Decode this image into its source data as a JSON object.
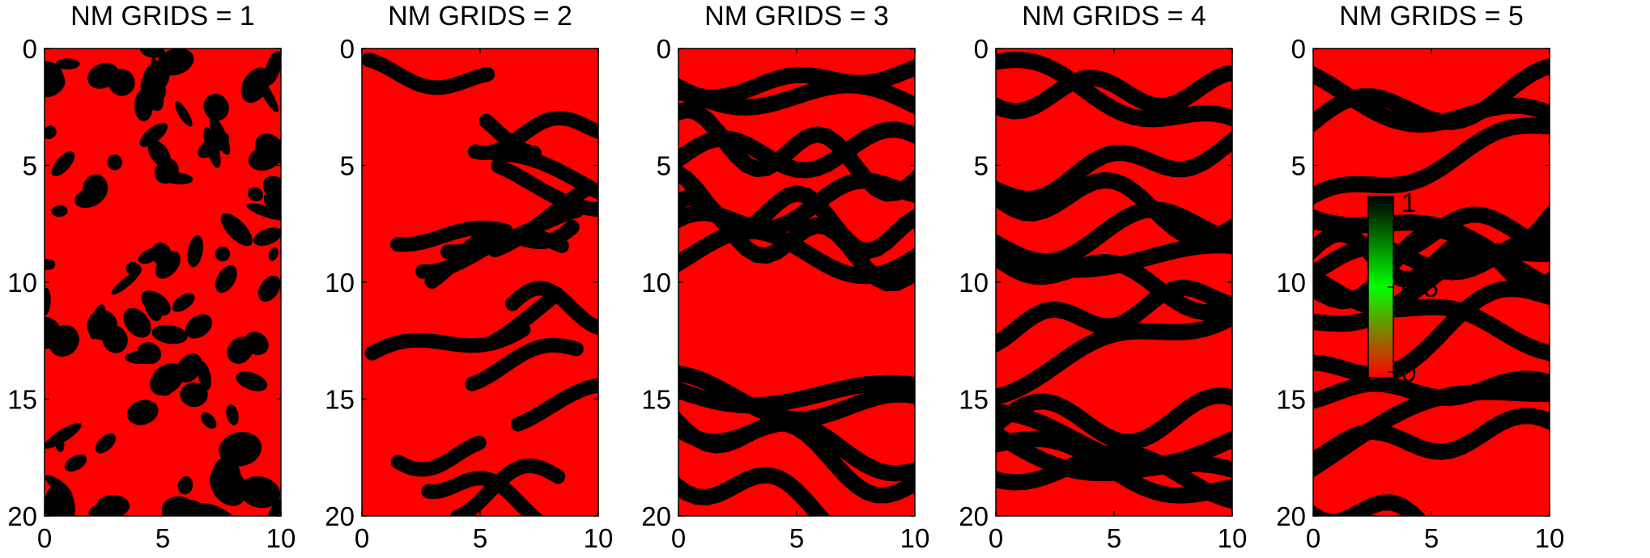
{
  "chart_data": {
    "type": "heatmap",
    "panels": [
      {
        "title": "NM GRIDS = 1",
        "pattern": "blobs"
      },
      {
        "title": "NM GRIDS = 2",
        "pattern": "short-channels"
      },
      {
        "title": "NM GRIDS = 3",
        "pattern": "channels"
      },
      {
        "title": "NM GRIDS = 4",
        "pattern": "channels"
      },
      {
        "title": "NM GRIDS = 5",
        "pattern": "channels"
      }
    ],
    "x_ticks": [
      "0",
      "5",
      "10"
    ],
    "y_ticks": [
      "0",
      "5",
      "10",
      "15",
      "20"
    ],
    "xlim": [
      0,
      10
    ],
    "ylim": [
      0,
      20
    ],
    "y_reversed": true,
    "colorbar": {
      "ticks": [
        "1",
        "0.5",
        "0"
      ],
      "range": [
        0,
        1
      ],
      "colormap": [
        "#ff0000",
        "#00ff00",
        "#000000"
      ]
    },
    "colors": {
      "background_value_0": "#ff0000",
      "channel_value_1": "#000000"
    }
  }
}
